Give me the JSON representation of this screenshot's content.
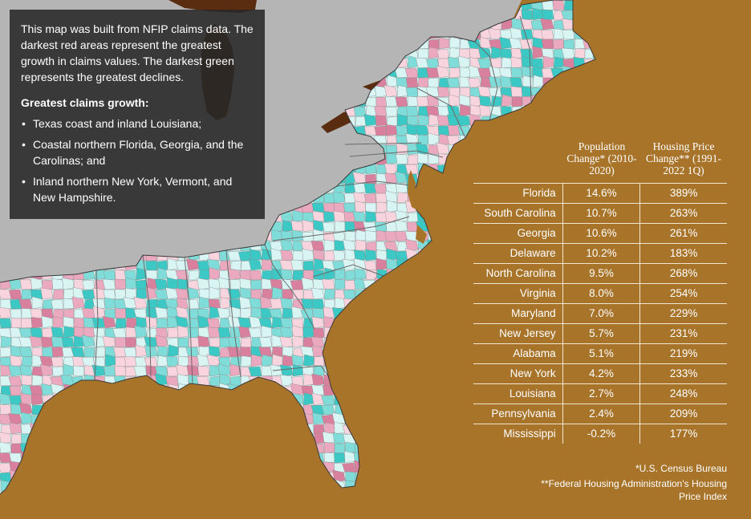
{
  "info": {
    "intro": "This map was built from NFIP claims data. The darkest red areas represent the greatest growth in claims values. The darkest green represents the greatest declines.",
    "heading": "Greatest claims growth:",
    "bullets": [
      "Texas coast and inland Louisiana;",
      "Coastal northern Florida, Georgia, and the Carolinas; and",
      "Inland northern New York, Vermont, and New Hampshire."
    ]
  },
  "table": {
    "headers": [
      "",
      "Population Change* (2010-2020)",
      "Housing Price Change** (1991-2022 1Q)"
    ],
    "rows": [
      {
        "state": "Florida",
        "pop": "14.6%",
        "price": "389%"
      },
      {
        "state": "South Carolina",
        "pop": "10.7%",
        "price": "263%"
      },
      {
        "state": "Georgia",
        "pop": "10.6%",
        "price": "261%"
      },
      {
        "state": "Delaware",
        "pop": "10.2%",
        "price": "183%"
      },
      {
        "state": "North Carolina",
        "pop": "9.5%",
        "price": "268%"
      },
      {
        "state": "Virginia",
        "pop": "8.0%",
        "price": "254%"
      },
      {
        "state": "Maryland",
        "pop": "7.0%",
        "price": "229%"
      },
      {
        "state": "New Jersey",
        "pop": "5.7%",
        "price": "231%"
      },
      {
        "state": "Alabama",
        "pop": "5.1%",
        "price": "219%"
      },
      {
        "state": "New York",
        "pop": "4.2%",
        "price": "233%"
      },
      {
        "state": "Louisiana",
        "pop": "2.7%",
        "price": "248%"
      },
      {
        "state": "Pennsylvania",
        "pop": "2.4%",
        "price": "209%"
      },
      {
        "state": "Mississippi",
        "pop": "-0.2%",
        "price": "177%"
      }
    ]
  },
  "footnotes": {
    "line1": "*U.S. Census Bureau",
    "line2": "**Federal Housing Administration's Housing Price Index"
  },
  "colors": {
    "ocean": "#a8742a",
    "other_land": "#b5b5b5",
    "great_lakes": "#5a2c10",
    "claims_colors": [
      "#3cc8c4",
      "#7fdcd8",
      "#d8f5f4",
      "#f8d4df",
      "#eba9bf",
      "#d9809e"
    ],
    "box": "#282828"
  }
}
